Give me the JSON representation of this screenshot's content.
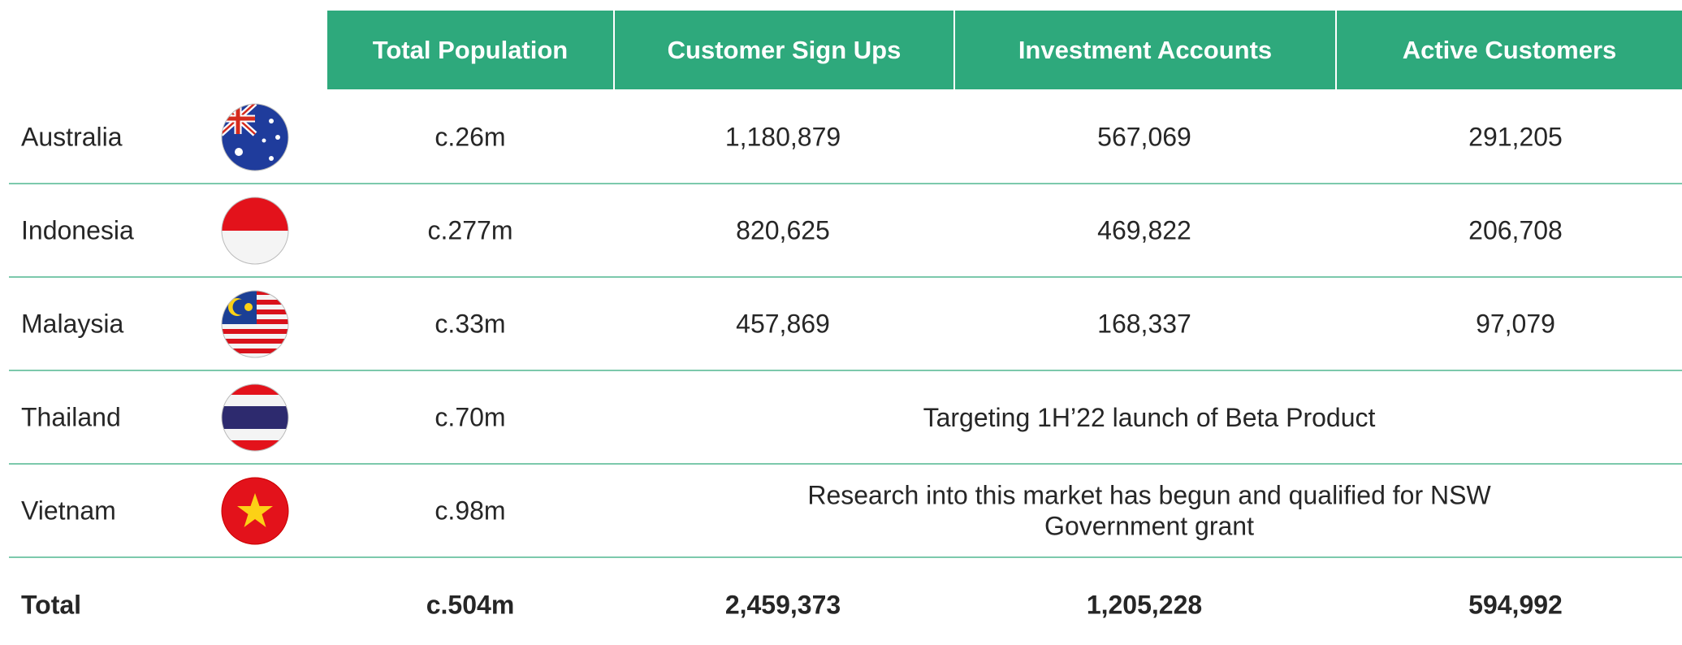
{
  "table": {
    "headers": [
      "Total Population",
      "Customer Sign Ups",
      "Investment Accounts",
      "Active Customers"
    ],
    "rows": [
      [
        "Australia",
        "c.26m",
        "1,180,879",
        "567,069",
        "291,205"
      ],
      [
        "Indonesia",
        "c.277m",
        "820,625",
        "469,822",
        "206,708"
      ],
      [
        "Malaysia",
        "c.33m",
        "457,869",
        "168,337",
        "97,079"
      ],
      [
        "Thailand",
        "c.70m",
        "Targeting 1H’22 launch of Beta Product"
      ],
      [
        "Vietnam",
        "c.98m",
        "Research into this market has begun and qualified for NSW Government grant"
      ]
    ],
    "total": [
      "Total",
      "c.504m",
      "2,459,373",
      "1,205,228",
      "594,992"
    ]
  }
}
